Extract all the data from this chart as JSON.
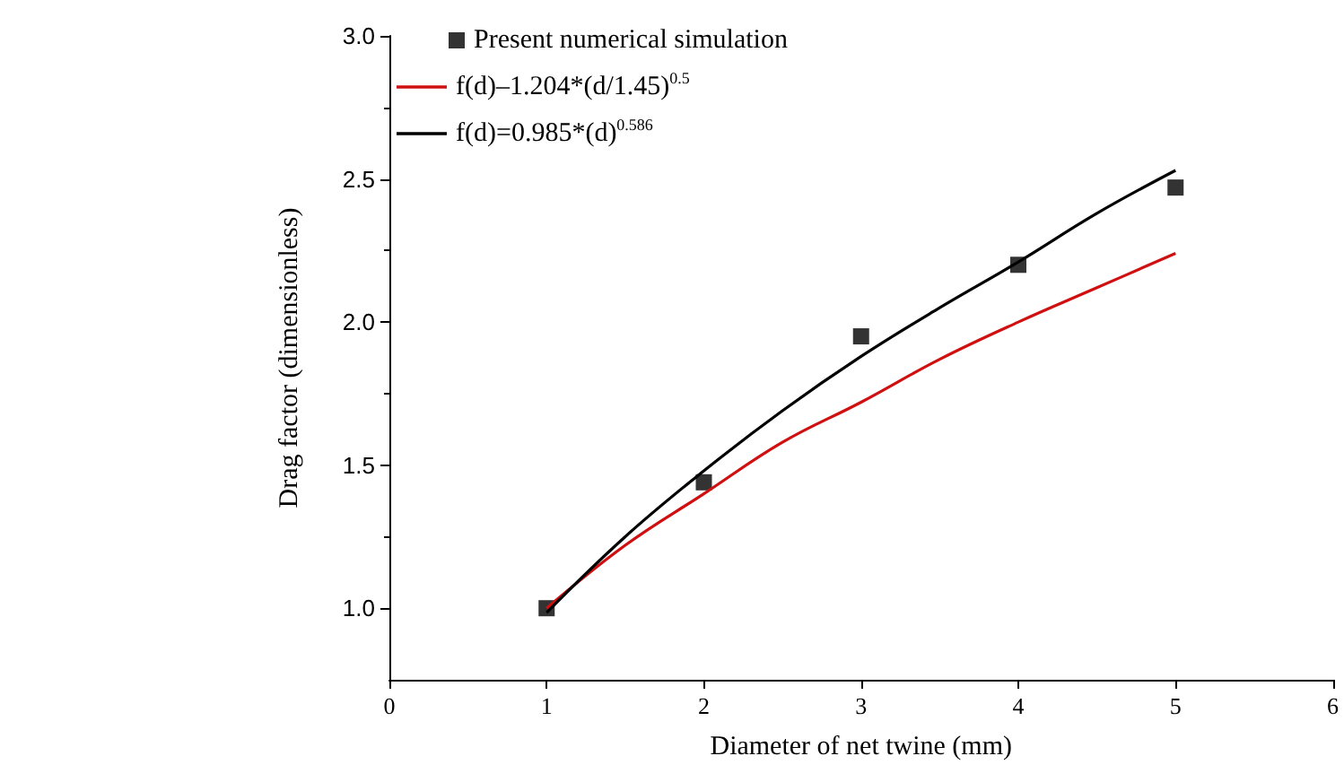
{
  "chart_data": {
    "type": "scatter",
    "xlabel": "Diameter of net twine (mm)",
    "ylabel": "Drag factor (dimensionless)",
    "xlim": [
      0,
      6
    ],
    "xticks": [
      0,
      1,
      2,
      3,
      4,
      5,
      6
    ],
    "ylim": [
      0.75,
      3.0
    ],
    "yticks": [
      {
        "value": 1,
        "label": "1.0"
      },
      {
        "value": 1.5,
        "label": "1.5"
      },
      {
        "value": 2,
        "label": "2.0"
      },
      {
        "value": 2.5,
        "label": "2.5"
      },
      {
        "value": 3,
        "label": "3.0"
      }
    ],
    "grid": false,
    "legend": "top left",
    "series": [
      {
        "name": "Present numerical simulation",
        "marker": "square",
        "color": "#000000",
        "x": [
          1,
          2,
          3,
          4,
          5
        ],
        "values": [
          1.0,
          1.44,
          1.95,
          2.2,
          2.47
        ]
      },
      {
        "name": "f(d)–1.204*(d/1.45)$^{0.5}$",
        "type": "line",
        "marker": "none",
        "color": "#d01010",
        "x": [
          1,
          1.5,
          2,
          2.5,
          3,
          3.5,
          4,
          4.5,
          5
        ],
        "values": [
          1.0,
          1.22,
          1.4,
          1.58,
          1.72,
          1.87,
          2.0,
          2.12,
          2.24
        ]
      },
      {
        "name": "f(d)=0.985*(d)$^{0.586}$",
        "type": "line",
        "marker": "none",
        "color": "#000000",
        "x": [
          1,
          1.5,
          2,
          2.5,
          3,
          3.5,
          4,
          4.5,
          5
        ],
        "values": [
          0.985,
          1.25,
          1.48,
          1.69,
          1.88,
          2.05,
          2.21,
          2.38,
          2.53
        ]
      }
    ]
  }
}
